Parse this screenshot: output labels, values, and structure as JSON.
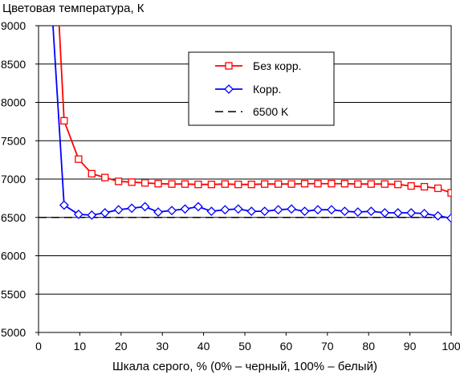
{
  "chart_data": {
    "type": "line",
    "ylabel": "Цветовая температура, К",
    "xlabel": "Шкала серого, % (0% – черный, 100% – белый)",
    "xlim": [
      0,
      100
    ],
    "ylim": [
      5000,
      9000
    ],
    "xticks": [
      0,
      10,
      20,
      30,
      40,
      50,
      60,
      70,
      80,
      90,
      100
    ],
    "yticks": [
      5000,
      5500,
      6000,
      6500,
      7000,
      7500,
      8000,
      8500,
      9000
    ],
    "grid": "horizontal",
    "legend_position": "top-right",
    "series": [
      {
        "name": "Без корр.",
        "color": "#ff0000",
        "marker": "square",
        "x": [
          5.0,
          6.2,
          9.7,
          12.9,
          16.1,
          19.4,
          22.6,
          25.8,
          29.0,
          32.3,
          35.5,
          38.7,
          41.9,
          45.2,
          48.4,
          51.6,
          54.8,
          58.1,
          61.3,
          64.5,
          67.7,
          71.0,
          74.2,
          77.4,
          80.6,
          83.9,
          87.1,
          90.3,
          93.5,
          96.8,
          100
        ],
        "y": [
          9000,
          7760,
          7260,
          7070,
          7020,
          6970,
          6960,
          6950,
          6940,
          6935,
          6935,
          6930,
          6930,
          6935,
          6930,
          6930,
          6935,
          6935,
          6935,
          6940,
          6940,
          6940,
          6940,
          6935,
          6935,
          6935,
          6930,
          6910,
          6900,
          6880,
          6820
        ]
      },
      {
        "name": "Корр.",
        "color": "#0000ff",
        "marker": "diamond",
        "x": [
          3.5,
          6.2,
          9.7,
          12.9,
          16.1,
          19.4,
          22.6,
          25.8,
          29.0,
          32.3,
          35.5,
          38.7,
          41.9,
          45.2,
          48.4,
          51.6,
          54.8,
          58.1,
          61.3,
          64.5,
          67.7,
          71.0,
          74.2,
          77.4,
          80.6,
          83.9,
          87.1,
          90.3,
          93.5,
          96.8,
          100
        ],
        "y": [
          9000,
          6660,
          6540,
          6530,
          6560,
          6600,
          6620,
          6640,
          6570,
          6590,
          6610,
          6640,
          6580,
          6600,
          6610,
          6580,
          6580,
          6600,
          6610,
          6580,
          6600,
          6600,
          6580,
          6570,
          6580,
          6560,
          6560,
          6560,
          6550,
          6520,
          6490
        ]
      },
      {
        "name": "6500 K",
        "color": "#000000",
        "dash": "dashed",
        "x": [
          0,
          100
        ],
        "y": [
          6500,
          6500
        ]
      }
    ]
  }
}
